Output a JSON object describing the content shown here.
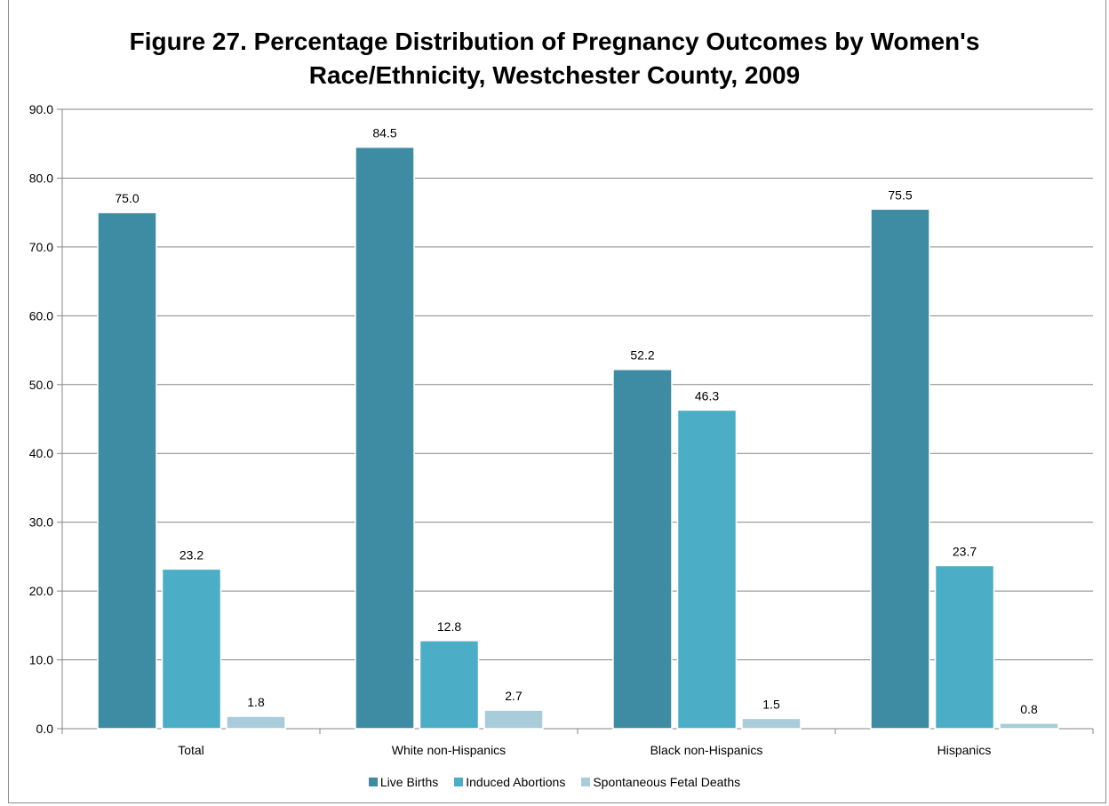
{
  "chart_data": {
    "type": "bar",
    "title_lines": [
      "Figure 27. Percentage Distribution of Pregnancy Outcomes by Women's",
      "Race/Ethnicity, Westchester County, 2009"
    ],
    "categories": [
      "Total",
      "White non-Hispanics",
      "Black non-Hispanics",
      "Hispanics"
    ],
    "series": [
      {
        "name": "Live Births",
        "color": "#3d8ca3",
        "values": [
          75.0,
          84.5,
          52.2,
          75.5
        ]
      },
      {
        "name": "Induced Abortions",
        "color": "#4badc6",
        "values": [
          23.2,
          12.8,
          46.3,
          23.7
        ]
      },
      {
        "name": "Spontaneous Fetal Deaths",
        "color": "#a8ccd9",
        "values": [
          1.8,
          2.7,
          1.5,
          0.8
        ]
      }
    ],
    "ylim": [
      0,
      90
    ],
    "yticks": [
      "0.0",
      "10.0",
      "20.0",
      "30.0",
      "40.0",
      "50.0",
      "60.0",
      "70.0",
      "80.0",
      "90.0"
    ],
    "grid": true,
    "legend_position": "bottom",
    "data_labels": true
  }
}
